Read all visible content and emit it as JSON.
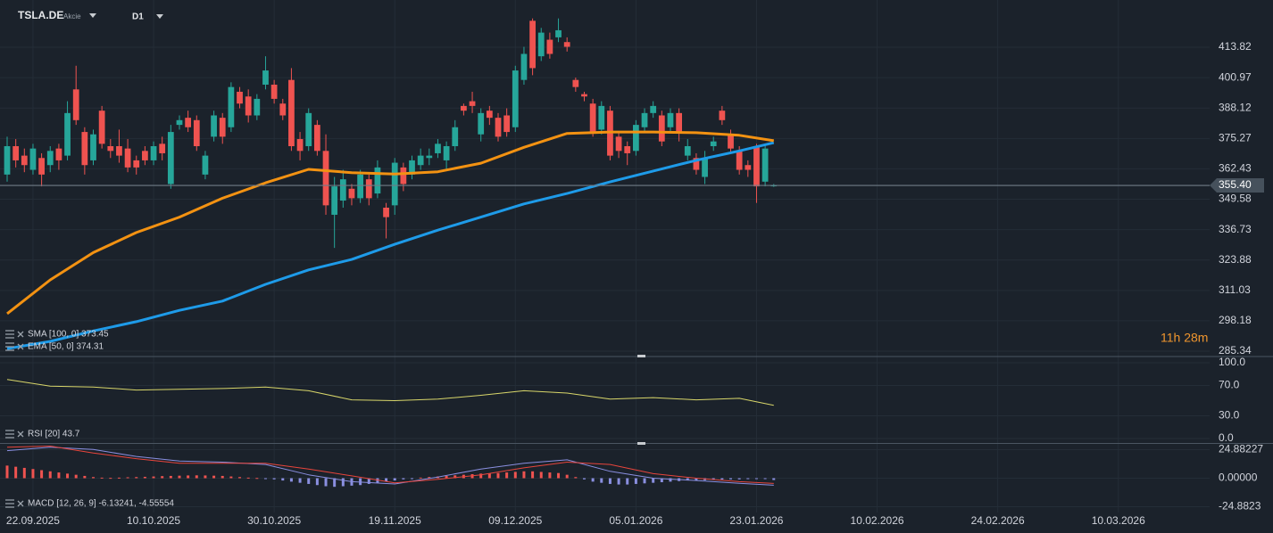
{
  "header": {
    "symbol": "TSLA.DE",
    "instrument_type": "Akcie",
    "timeframe": "D1",
    "countdown": "11h 28m"
  },
  "chart_data": [
    {
      "type": "candlestick",
      "up_color": "#26a69a",
      "down_color": "#ef5350",
      "open": [
        360,
        372,
        368,
        362,
        367,
        364,
        371,
        368,
        396,
        378,
        366,
        387,
        372,
        372,
        371,
        366,
        370,
        366,
        373,
        356,
        381,
        384,
        383,
        360,
        376,
        384,
        380,
        395,
        393,
        385,
        398,
        398,
        390,
        400,
        375,
        372,
        381,
        370,
        343,
        349,
        354,
        350,
        358,
        352,
        346,
        347,
        363,
        360,
        364,
        367,
        369,
        366,
        372,
        389,
        391,
        377,
        387,
        384,
        385,
        380,
        400,
        425,
        410,
        417,
        418,
        416,
        400,
        394,
        390,
        379,
        387,
        376,
        372,
        370,
        380,
        386,
        385,
        380,
        386,
        368,
        367,
        359,
        372,
        387,
        377,
        370,
        364,
        372,
        357,
        355.2
      ],
      "high": [
        376,
        375,
        371,
        373,
        369,
        372,
        373,
        391,
        406,
        380,
        379,
        389,
        375,
        379,
        375,
        368,
        372,
        374,
        376,
        381,
        385,
        387,
        385,
        370,
        387,
        386,
        399,
        397,
        396,
        394,
        410,
        400,
        392,
        405,
        378,
        388,
        383,
        377,
        359,
        362,
        356,
        362,
        360,
        366,
        348,
        367,
        365,
        368,
        371,
        371,
        375,
        374,
        383,
        390,
        395,
        388,
        389,
        386,
        388,
        406,
        414,
        426,
        422,
        420,
        426,
        418,
        401,
        395,
        392,
        391,
        389,
        378,
        374,
        383,
        388,
        391,
        387,
        388,
        388,
        375,
        369,
        370,
        376,
        389,
        379,
        372,
        366,
        373,
        373,
        356
      ],
      "low": [
        357,
        363,
        361,
        360,
        355,
        361,
        362,
        366,
        381,
        360,
        364,
        371,
        367,
        365,
        361,
        360,
        364,
        364,
        366,
        354,
        379,
        378,
        370,
        358,
        374,
        373,
        378,
        388,
        382,
        383,
        396,
        390,
        383,
        370,
        366,
        370,
        368,
        343,
        329,
        346,
        347,
        348,
        347,
        350,
        333,
        343,
        353,
        358,
        362,
        364,
        367,
        362,
        370,
        385,
        386,
        374,
        381,
        374,
        376,
        378,
        398,
        402,
        408,
        409,
        416,
        412,
        395,
        391,
        376,
        377,
        366,
        367,
        364,
        368,
        378,
        384,
        372,
        378,
        374,
        366,
        360,
        356,
        370,
        381,
        369,
        360,
        359,
        348,
        355,
        354.8
      ],
      "close": [
        372,
        366,
        364,
        371,
        360,
        370,
        366,
        386,
        383,
        364,
        377,
        373,
        370,
        368,
        363,
        363,
        366,
        372,
        369,
        378,
        383,
        380,
        372,
        368,
        385,
        376,
        397,
        390,
        385,
        392,
        404,
        392,
        385,
        372,
        370,
        386,
        370,
        347,
        355,
        358,
        350,
        360,
        350,
        363,
        342,
        365,
        356,
        366,
        368,
        368,
        373,
        372,
        380,
        387,
        389,
        386,
        384,
        376,
        378,
        404,
        411,
        405,
        420,
        411,
        421,
        414,
        397,
        393,
        378,
        389,
        368,
        370,
        369,
        381,
        386,
        389,
        374,
        386,
        378,
        372,
        362,
        367,
        374,
        383,
        371,
        362,
        362,
        355,
        371,
        355.4
      ],
      "series": [
        {
          "name": "SMA [100, 0] 373.45",
          "color": "#1e9be9",
          "x": [
            0,
            5,
            10,
            15,
            20,
            25,
            30,
            35,
            40,
            45,
            50,
            55,
            60,
            65,
            70,
            75,
            80,
            85,
            89
          ],
          "values": [
            286.4,
            289.5,
            293.9,
            297.8,
            302.6,
            306.5,
            313.6,
            319.7,
            324.1,
            330.5,
            336.5,
            342,
            347.6,
            352,
            356.9,
            361.5,
            366,
            370,
            373.45
          ]
        },
        {
          "name": "EMA [50, 0] 374.31",
          "color": "#f39212",
          "x": [
            0,
            5,
            10,
            15,
            20,
            25,
            30,
            35,
            40,
            45,
            50,
            55,
            60,
            65,
            70,
            75,
            80,
            85,
            89
          ],
          "values": [
            301.2,
            315.5,
            327,
            335.5,
            342,
            350,
            356.5,
            362.2,
            360.8,
            360.2,
            361.2,
            364.8,
            371.5,
            377.4,
            378,
            378,
            377.7,
            376.6,
            374.31
          ]
        }
      ],
      "xlim": [
        -0.83,
        139.6
      ],
      "xticks": [
        {
          "value": 3,
          "label": "22.09.2025"
        },
        {
          "value": 17,
          "label": "10.10.2025"
        },
        {
          "value": 31,
          "label": "30.10.2025"
        },
        {
          "value": 45,
          "label": "19.11.2025"
        },
        {
          "value": 59,
          "label": "09.12.2025"
        },
        {
          "value": 73,
          "label": "05.01.2026"
        },
        {
          "value": 87,
          "label": "23.01.2026"
        },
        {
          "value": 101,
          "label": "10.02.2026"
        },
        {
          "value": 115,
          "label": "24.02.2026"
        },
        {
          "value": 129,
          "label": "10.03.2026"
        }
      ],
      "ylim": [
        283.08,
        433.79
      ],
      "yticks": [
        285.34,
        298.18,
        311.03,
        323.88,
        336.73,
        349.58,
        362.43,
        375.27,
        388.12,
        400.97,
        413.82
      ],
      "last_price": {
        "value": 355.4,
        "label": "355.40"
      },
      "grid": true
    },
    {
      "type": "line",
      "title": "RSI [20] 43.7",
      "series": [
        {
          "color": "#d8d66a",
          "x": [
            0,
            5,
            10,
            15,
            20,
            25,
            30,
            35,
            40,
            45,
            50,
            55,
            60,
            65,
            70,
            75,
            80,
            85,
            89
          ],
          "values": [
            78,
            69,
            68,
            64,
            65,
            66,
            68,
            63,
            51,
            50,
            52,
            57,
            63,
            60,
            52,
            54,
            51,
            53,
            43.7
          ]
        }
      ],
      "ylim": [
        -5.9,
        108.2
      ],
      "yticks": [
        {
          "value": 100,
          "label": "100.0"
        },
        {
          "value": 70,
          "label": "70.0"
        },
        {
          "value": 30,
          "label": "30.0"
        },
        {
          "value": 0,
          "label": "0.0"
        }
      ]
    },
    {
      "type": "macd",
      "title": "MACD [12, 26, 9] -6.13241, -4.55554",
      "histogram": [
        11,
        10,
        9,
        8,
        7,
        6,
        5,
        4,
        3,
        2,
        1,
        0.5,
        0.3,
        0.5,
        0.8,
        1,
        1.2,
        1.5,
        1.8,
        2,
        2.2,
        2.4,
        2.5,
        2.4,
        2.2,
        2,
        1.5,
        1,
        0.5,
        0.2,
        -0.5,
        -1,
        -2,
        -3,
        -4,
        -5,
        -6,
        -7,
        -7.5,
        -7,
        -6.5,
        -6,
        -5,
        -4,
        -3,
        -2,
        -1,
        -0.5,
        0.5,
        1,
        1.5,
        2,
        2.5,
        3,
        3.5,
        4,
        4,
        4.5,
        5,
        5.5,
        6,
        6,
        5.5,
        5,
        4.5,
        3,
        1,
        -1,
        -3,
        -4,
        -5,
        -5.5,
        -5.5,
        -5,
        -4.5,
        -4,
        -3.5,
        -3,
        -2.5,
        -2,
        -2,
        -1.8,
        -1.5,
        -1.2,
        -1,
        -1,
        -0.8,
        -0.6,
        -0.5,
        -1.57
      ],
      "positive_color": "#ef5350",
      "negative_color": "#8a8fe0",
      "series": [
        {
          "color": "#8a8fe0",
          "x": [
            0,
            5,
            10,
            15,
            20,
            25,
            30,
            35,
            40,
            45,
            50,
            55,
            60,
            65,
            70,
            75,
            80,
            85,
            89
          ],
          "values": [
            24,
            27,
            25,
            19,
            15,
            14,
            12,
            3,
            -3,
            -5,
            1,
            8,
            13,
            16,
            6,
            0,
            -2,
            -4.5,
            -6.13241
          ]
        },
        {
          "color": "#e8453c",
          "x": [
            0,
            5,
            10,
            15,
            20,
            25,
            30,
            35,
            40,
            45,
            50,
            55,
            60,
            65,
            70,
            75,
            80,
            85,
            89
          ],
          "values": [
            27,
            28,
            22,
            17,
            13,
            13,
            13,
            8,
            2,
            -4,
            -1,
            3,
            9,
            14,
            12,
            4,
            0,
            -3,
            -4.55554
          ]
        }
      ],
      "ylim": [
        -29.9,
        30.7
      ],
      "yticks": [
        24.88227,
        {
          "value": 0,
          "label": "0.00000"
        },
        -24.8823
      ]
    }
  ]
}
